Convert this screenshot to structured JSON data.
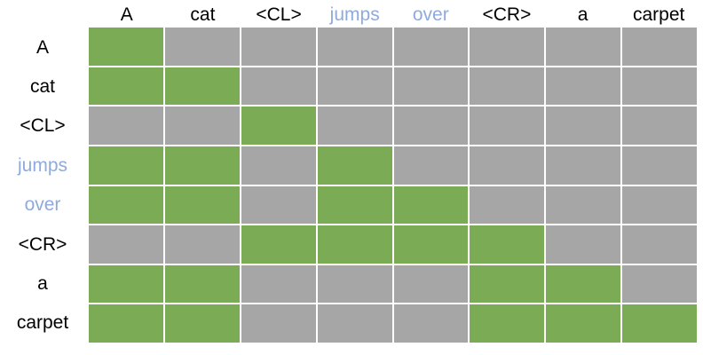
{
  "figure": {
    "description": "Block-wise attention mask matrix over a token sequence with cloze span markers",
    "tokens": [
      {
        "label": "A",
        "emphasis": "normal"
      },
      {
        "label": "cat",
        "emphasis": "normal"
      },
      {
        "label": "<CL>",
        "emphasis": "normal"
      },
      {
        "label": "jumps",
        "emphasis": "highlight"
      },
      {
        "label": "over",
        "emphasis": "highlight"
      },
      {
        "label": "<CR>",
        "emphasis": "normal"
      },
      {
        "label": "a",
        "emphasis": "normal"
      },
      {
        "label": "carpet",
        "emphasis": "normal"
      }
    ]
  },
  "colors": {
    "attend_green": "#7CAB55",
    "masked_gray": "#A6A6A6",
    "label_black": "#000000",
    "label_blue": "#8FAADC",
    "gridline_white": "#FFFFFF"
  },
  "chart_data": {
    "type": "heatmap",
    "title": "",
    "x_categories": [
      "A",
      "cat",
      "<CL>",
      "jumps",
      "over",
      "<CR>",
      "a",
      "carpet"
    ],
    "y_categories": [
      "A",
      "cat",
      "<CL>",
      "jumps",
      "over",
      "<CR>",
      "a",
      "carpet"
    ],
    "values": [
      [
        1,
        0,
        0,
        0,
        0,
        0,
        0,
        0
      ],
      [
        1,
        1,
        0,
        0,
        0,
        0,
        0,
        0
      ],
      [
        0,
        0,
        1,
        0,
        0,
        0,
        0,
        0
      ],
      [
        1,
        1,
        0,
        1,
        0,
        0,
        0,
        0
      ],
      [
        1,
        1,
        0,
        1,
        1,
        0,
        0,
        0
      ],
      [
        0,
        0,
        1,
        1,
        1,
        1,
        0,
        0
      ],
      [
        1,
        1,
        0,
        0,
        0,
        1,
        1,
        0
      ],
      [
        1,
        1,
        0,
        0,
        0,
        1,
        1,
        1
      ]
    ],
    "value_meaning": {
      "1": "attended (green cell)",
      "0": "masked (gray cell)"
    },
    "highlighted_tokens": [
      "jumps",
      "over"
    ],
    "grid": "on",
    "legend": "none"
  }
}
